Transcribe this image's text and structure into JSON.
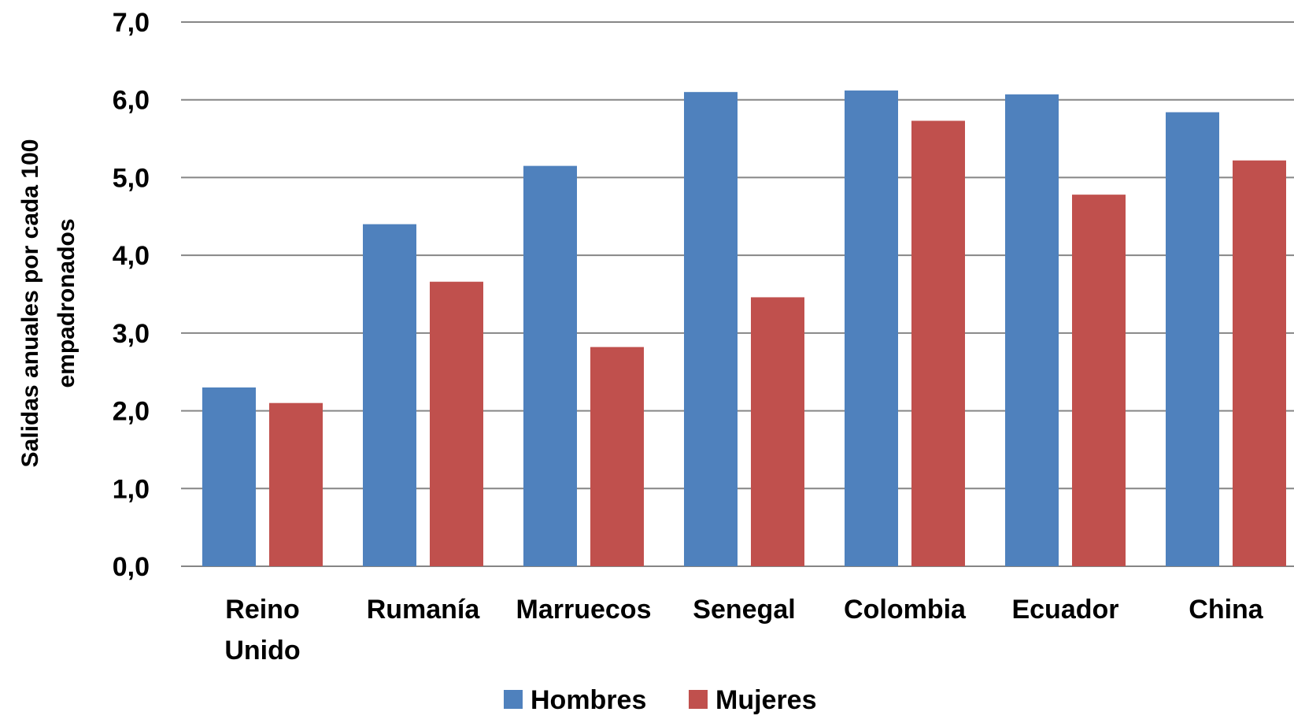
{
  "chart_data": {
    "type": "bar",
    "categories": [
      [
        "Reino",
        "Unido"
      ],
      [
        "Rumanía"
      ],
      [
        "Marruecos"
      ],
      [
        "Senegal"
      ],
      [
        "Colombia"
      ],
      [
        "Ecuador"
      ],
      [
        "China"
      ]
    ],
    "series": [
      {
        "name": "Hombres",
        "color": "#4F81BD",
        "values": [
          2.3,
          4.4,
          5.15,
          6.1,
          6.12,
          6.07,
          5.84
        ]
      },
      {
        "name": "Mujeres",
        "color": "#C0504D",
        "values": [
          2.1,
          3.66,
          2.82,
          3.46,
          5.73,
          4.78,
          5.22
        ]
      }
    ],
    "ylabel_lines": [
      "Salidas anuales por cada 100",
      "empadronados"
    ],
    "ylim": [
      0,
      7
    ],
    "yticks": [
      "0,0",
      "1,0",
      "2,0",
      "3,0",
      "4,0",
      "5,0",
      "6,0",
      "7,0"
    ],
    "grid": true,
    "gridline_color": "#868686",
    "legend_position": "bottom"
  }
}
